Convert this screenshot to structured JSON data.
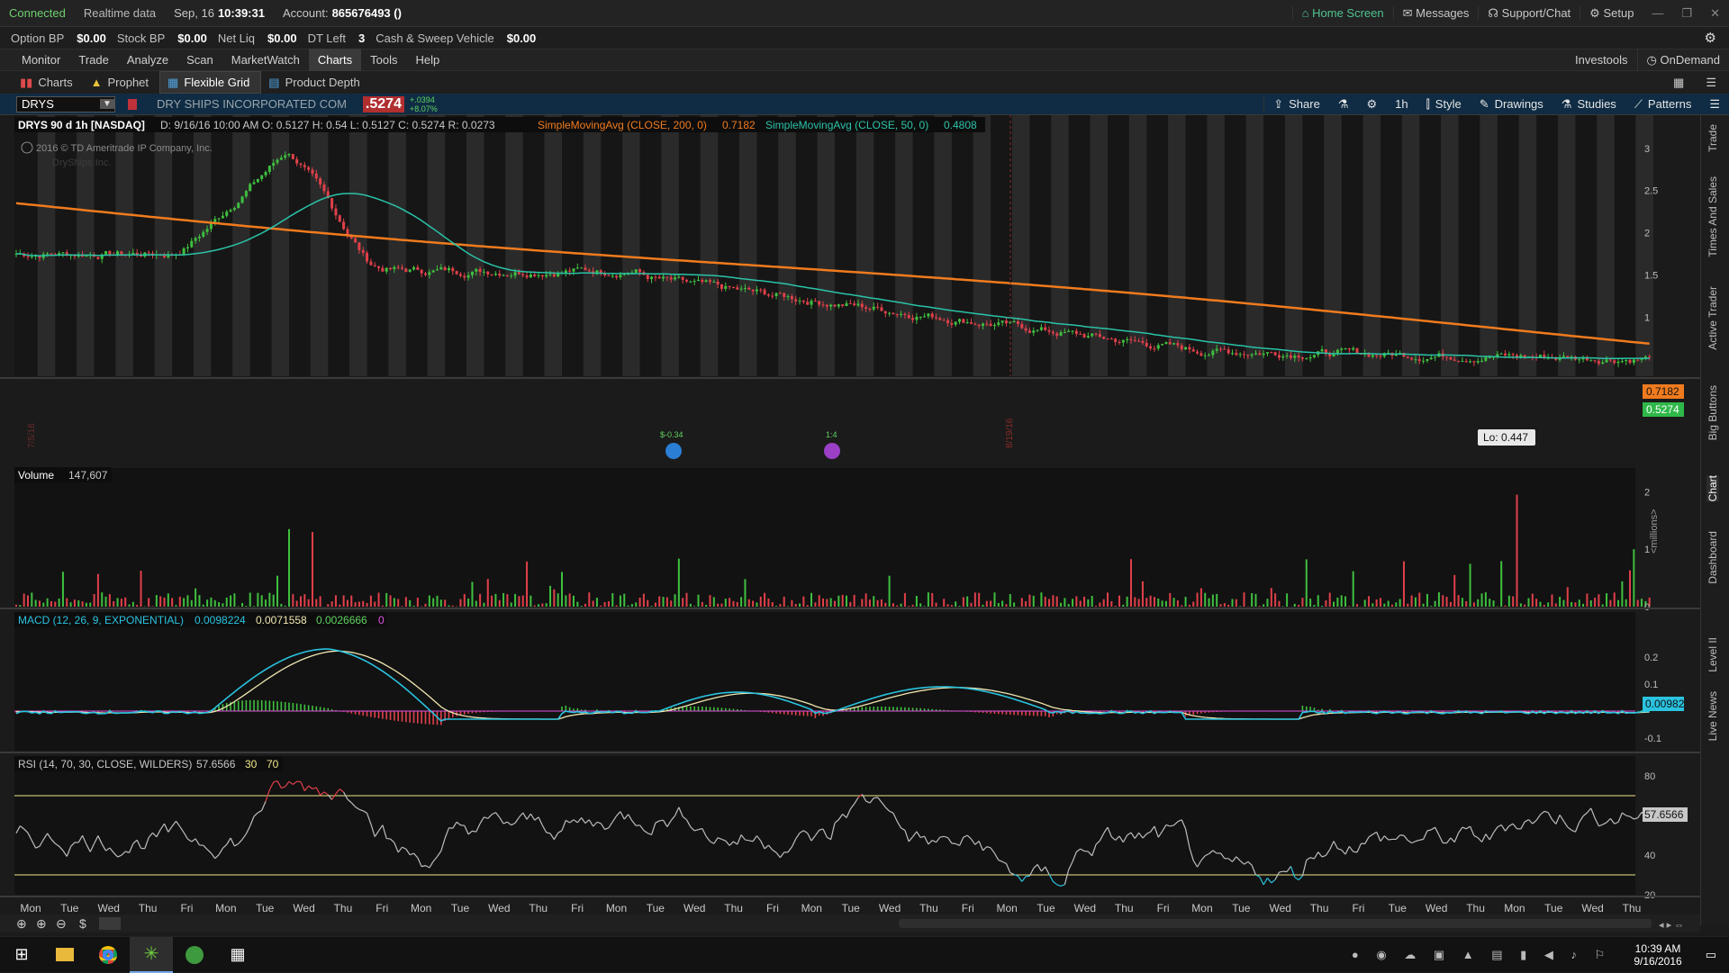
{
  "status": {
    "connected": "Connected",
    "realtime": "Realtime data",
    "date": "Sep, 16",
    "time": "10:39:31",
    "account_label": "Account:",
    "account_value": "865676493 ()",
    "home": "Home Screen",
    "messages": "Messages",
    "support": "Support/Chat",
    "setup": "Setup"
  },
  "account_bar": [
    {
      "label": "Option BP",
      "value": "$0.00"
    },
    {
      "label": "Stock BP",
      "value": "$0.00"
    },
    {
      "label": "Net Liq",
      "value": "$0.00"
    },
    {
      "label": "DT Left",
      "value": "3"
    },
    {
      "label": "Cash & Sweep Vehicle",
      "value": "$0.00"
    }
  ],
  "menu": {
    "items": [
      "Monitor",
      "Trade",
      "Analyze",
      "Scan",
      "MarketWatch",
      "Charts",
      "Tools",
      "Help"
    ],
    "active": "Charts",
    "investools": "Investools",
    "ondemand": "OnDemand"
  },
  "subtabs": [
    "Charts",
    "Prophet",
    "Flexible Grid",
    "Product Depth"
  ],
  "chartbar": {
    "symbol": "DRYS",
    "company": "DRY SHIPS INCORPORATED COM",
    "last": ".5274",
    "change": "+.0394",
    "change_pct": "+8.07%",
    "share": "Share",
    "interval": "1h",
    "style": "Style",
    "drawings": "Drawings",
    "studies": "Studies",
    "patterns": "Patterns"
  },
  "price_header": {
    "title": "DRYS 90 d 1h [NASDAQ]",
    "ohlc": "D: 9/16/16 10:00 AM  O: 0.5127  H: 0.54  L: 0.5127  C: 0.5274  R: 0.0273",
    "sma200_label": "SimpleMovingAvg (CLOSE, 200, 0)",
    "sma200_value": "0.7182",
    "sma50_label": "SimpleMovingAvg (CLOSE, 50, 0)",
    "sma50_value": "0.4808",
    "copyright": "2016 © TD Ameritrade IP Company, Inc.",
    "watermark": "DryShips Inc.",
    "lo_label": "Lo: 0.447",
    "sma200_badge": "0.7182",
    "last_badge": "0.5274",
    "y_ticks": [
      "3",
      "2.5",
      "2",
      "1.5",
      "1"
    ],
    "date_markers": [
      "7/5/16",
      "8/19/16"
    ],
    "event1": "$-0.34",
    "event2": "1:4"
  },
  "volume": {
    "label": "Volume",
    "value": "147,607",
    "units": "<millions>",
    "y_ticks": [
      "2",
      "1",
      "0"
    ]
  },
  "macd": {
    "label": "MACD (12, 26, 9, EXPONENTIAL)",
    "v1": "0.0098224",
    "v2": "0.0071558",
    "v3": "0.0026666",
    "v4": "0",
    "badge": "0.00982",
    "y_ticks": [
      "0.2",
      "0.1",
      "-0.1"
    ]
  },
  "rsi": {
    "label": "RSI (14, 70, 30, CLOSE, WILDERS)",
    "value": "57.6566",
    "low": "30",
    "high": "70",
    "badge": "57.6566",
    "y_ticks": [
      "80",
      "60",
      "40",
      "20"
    ]
  },
  "x_axis": [
    "Mon",
    "Tue",
    "Wed",
    "Thu",
    "Fri",
    "Mon",
    "Tue",
    "Wed",
    "Thu",
    "Fri",
    "Mon",
    "Tue",
    "Wed",
    "Thu",
    "Fri",
    "Mon",
    "Tue",
    "Wed",
    "Thu",
    "Fri",
    "Mon",
    "Tue",
    "Wed",
    "Thu",
    "Fri",
    "Mon",
    "Tue",
    "Wed",
    "Thu",
    "Fri",
    "Mon",
    "Tue",
    "Wed",
    "Thu",
    "Fri",
    "Tue",
    "Wed",
    "Thu",
    "Mon",
    "Tue",
    "Wed",
    "Thu"
  ],
  "right_rail": [
    "Trade",
    "Times And Sales",
    "Active Trader",
    "Big Buttons",
    "Chart",
    "Dashboard",
    "Level II",
    "Live News"
  ],
  "taskbar": {
    "time": "10:39 AM",
    "date": "9/16/2016"
  },
  "colors": {
    "sma200": "#f07b1e",
    "sma50": "#2ac3a8",
    "up": "#3fbf3f",
    "down": "#e0404a",
    "bg_panel": "#111"
  }
}
